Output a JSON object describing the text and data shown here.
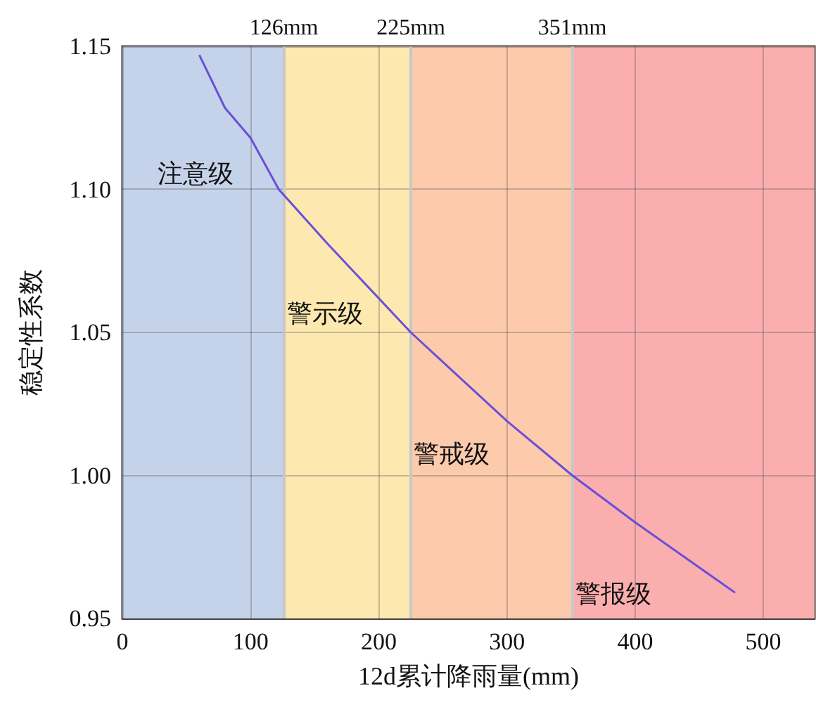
{
  "chart_data": {
    "type": "line",
    "xlabel": "12d累计降雨量(mm)",
    "ylabel": "稳定性系数",
    "x": [
      60,
      80,
      100,
      122,
      160,
      225,
      300,
      351,
      400,
      478
    ],
    "series": [
      {
        "color": "#6a4fd8",
        "values": [
          1.147,
          1.1285,
          1.118,
          1.1,
          1.081,
          1.05,
          1.019,
          1.0,
          0.9836,
          0.959
        ]
      }
    ],
    "xlim": [
      0,
      540
    ],
    "xticks": [
      0,
      100,
      200,
      300,
      400,
      500
    ],
    "ylim": [
      0.95,
      1.15
    ],
    "yticks": [
      {
        "value": 0.95,
        "label": "0.95"
      },
      {
        "value": 1.0,
        "label": "1.00"
      },
      {
        "value": 1.05,
        "label": "1.05"
      },
      {
        "value": 1.1,
        "label": "1.10"
      },
      {
        "value": 1.15,
        "label": "1.15"
      }
    ],
    "grid": true,
    "marker": "none",
    "line_style": "solid",
    "bands": [
      {
        "axis": "x",
        "from": 0,
        "to": 126,
        "label": "注意级",
        "color": "#c5d3ea"
      },
      {
        "axis": "x",
        "from": 126,
        "to": 225,
        "label": "警示级",
        "color": "#fde9b0"
      },
      {
        "axis": "x",
        "from": 225,
        "to": 351,
        "label": "警戒级",
        "color": "#fdcbab"
      },
      {
        "axis": "x",
        "from": 351,
        "to": 540,
        "label": "警报级",
        "color": "#fbaeae"
      }
    ],
    "ref_lines": [
      {
        "axis": "x",
        "value": 126,
        "label": "126mm"
      },
      {
        "axis": "x",
        "value": 225,
        "label": "225mm"
      },
      {
        "axis": "x",
        "value": 351,
        "label": "351mm"
      }
    ]
  }
}
